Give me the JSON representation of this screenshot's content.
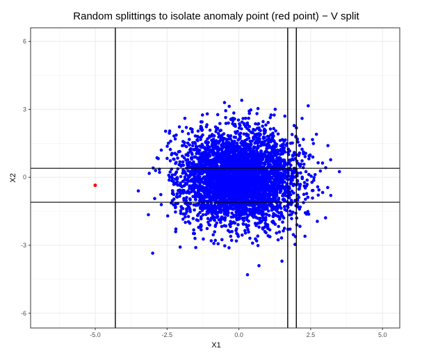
{
  "chart_data": {
    "type": "scatter",
    "title": "Random splittings to isolate anomaly  point (red point) − V split",
    "xlabel": "X1",
    "ylabel": "X2",
    "xlim": [
      -7.25,
      5.6
    ],
    "ylim": [
      -6.65,
      6.6
    ],
    "x_ticks": [
      -5.0,
      -2.5,
      0.0,
      2.5,
      5.0
    ],
    "x_tick_labels": [
      "-5.0",
      "-2.5",
      "0.0",
      "2.5",
      "5.0"
    ],
    "y_ticks": [
      -6,
      -3,
      0,
      3,
      6
    ],
    "y_tick_labels": [
      "-6",
      "-3",
      "0",
      "3",
      "6"
    ],
    "grid": true,
    "legend": "none",
    "series": [
      {
        "description": "bulk of points approximately normal around (0, 0)",
        "color": "#0000ff",
        "center": [
          0,
          0
        ],
        "spread_sd": [
          1.0,
          1.0
        ],
        "approx_count": 4000
      },
      {
        "description": "outlying blue points",
        "color": "#0000ff",
        "points": [
          [
            -1.3,
            2.2
          ],
          [
            -3.0,
            -3.35
          ],
          [
            0.3,
            -4.3
          ],
          [
            0.7,
            -3.9
          ],
          [
            -1.5,
            -3.1
          ],
          [
            3.5,
            0.25
          ],
          [
            3.1,
            1.4
          ],
          [
            2.2,
            2.6
          ],
          [
            -0.5,
            3.3
          ],
          [
            1.5,
            -3.7
          ],
          [
            -2.7,
            1.2
          ],
          [
            -2.9,
            0.3
          ],
          [
            2.7,
            1.9
          ],
          [
            -2.2,
            -2.4
          ],
          [
            2.3,
            -2.6
          ],
          [
            1.6,
            2.7
          ],
          [
            -1.1,
            2.8
          ],
          [
            0.1,
            3.4
          ],
          [
            3.2,
            -0.8
          ],
          [
            -3.5,
            -0.6
          ]
        ]
      },
      {
        "description": "anomaly point",
        "color": "#ff0000",
        "points": [
          [
            -5.0,
            -0.35
          ]
        ]
      }
    ],
    "split_lines": {
      "vertical_x": [
        -4.3,
        1.7,
        2.0
      ],
      "horizontal_y": [
        0.4,
        -1.1
      ],
      "color": "#000000"
    }
  }
}
